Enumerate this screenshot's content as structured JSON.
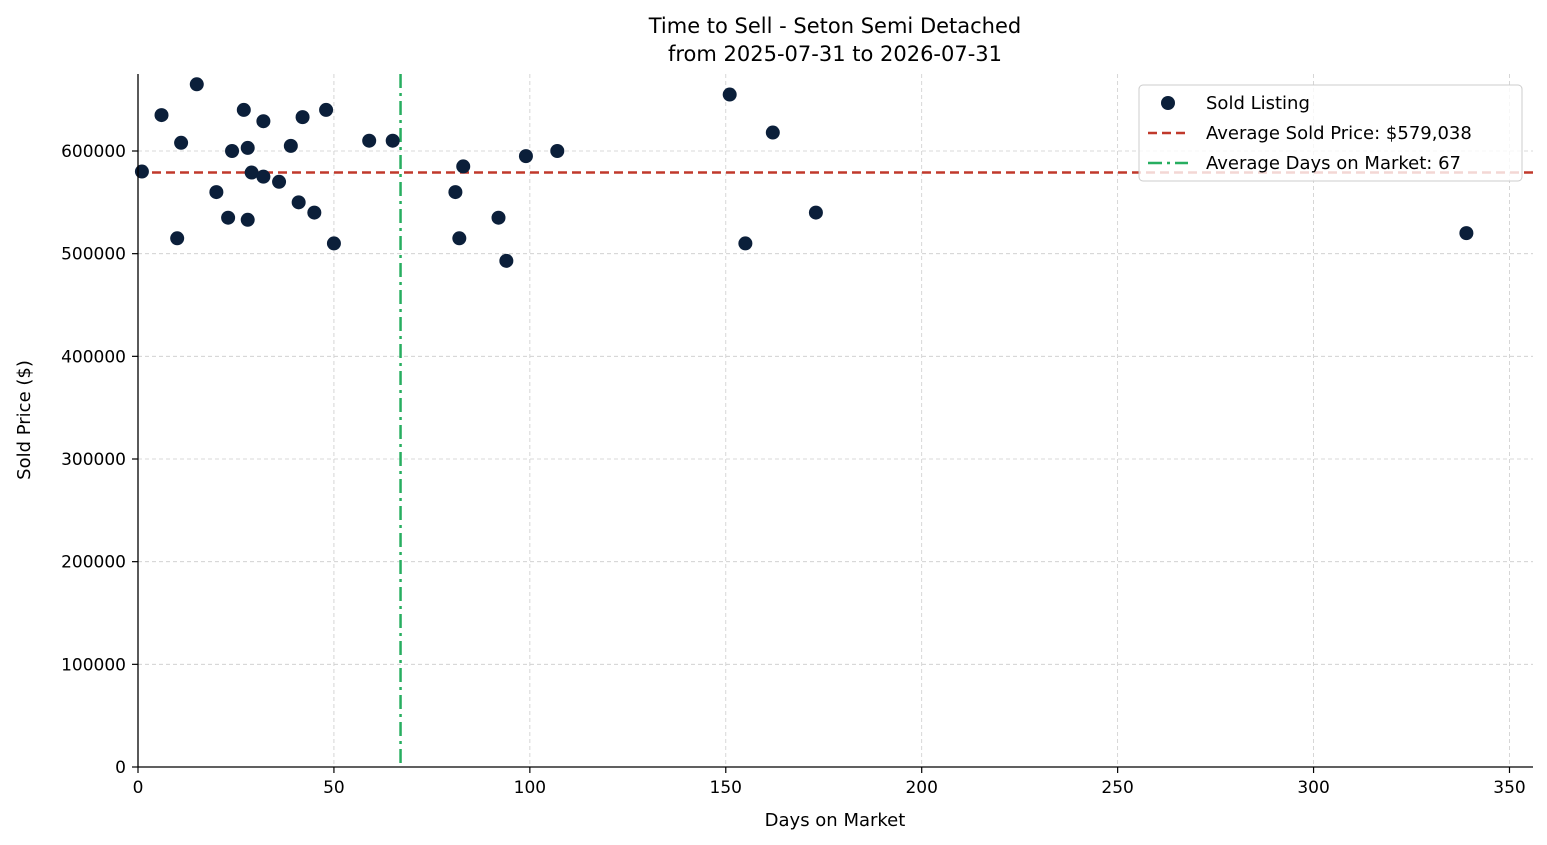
{
  "chart_data": {
    "type": "scatter",
    "title": "Time to Sell - Seton Semi Detached",
    "subtitle": "from 2025-07-31 to 2026-07-31",
    "xlabel": "Days on Market",
    "ylabel": "Sold Price ($)",
    "xlim": [
      0,
      356
    ],
    "ylim": [
      0,
      675000
    ],
    "x_ticks": [
      0,
      50,
      100,
      150,
      200,
      250,
      300,
      350
    ],
    "y_ticks": [
      0,
      100000,
      200000,
      300000,
      400000,
      500000,
      600000
    ],
    "grid": true,
    "legend_position": "top-right",
    "series": [
      {
        "name": "Sold Listing",
        "color": "#0b1f3a",
        "points": [
          {
            "x": 1,
            "y": 580000
          },
          {
            "x": 6,
            "y": 635000
          },
          {
            "x": 10,
            "y": 515000
          },
          {
            "x": 11,
            "y": 608000
          },
          {
            "x": 15,
            "y": 665000
          },
          {
            "x": 20,
            "y": 560000
          },
          {
            "x": 23,
            "y": 535000
          },
          {
            "x": 24,
            "y": 600000
          },
          {
            "x": 27,
            "y": 640000
          },
          {
            "x": 28,
            "y": 603000
          },
          {
            "x": 28,
            "y": 533000
          },
          {
            "x": 29,
            "y": 579000
          },
          {
            "x": 32,
            "y": 629000
          },
          {
            "x": 32,
            "y": 575000
          },
          {
            "x": 36,
            "y": 570000
          },
          {
            "x": 39,
            "y": 605000
          },
          {
            "x": 41,
            "y": 550000
          },
          {
            "x": 42,
            "y": 633000
          },
          {
            "x": 45,
            "y": 540000
          },
          {
            "x": 48,
            "y": 640000
          },
          {
            "x": 50,
            "y": 510000
          },
          {
            "x": 59,
            "y": 610000
          },
          {
            "x": 65,
            "y": 610000
          },
          {
            "x": 81,
            "y": 560000
          },
          {
            "x": 82,
            "y": 515000
          },
          {
            "x": 83,
            "y": 585000
          },
          {
            "x": 92,
            "y": 535000
          },
          {
            "x": 94,
            "y": 493000
          },
          {
            "x": 99,
            "y": 595000
          },
          {
            "x": 107,
            "y": 600000
          },
          {
            "x": 151,
            "y": 655000
          },
          {
            "x": 155,
            "y": 510000
          },
          {
            "x": 162,
            "y": 618000
          },
          {
            "x": 173,
            "y": 540000
          },
          {
            "x": 339,
            "y": 520000
          }
        ]
      }
    ],
    "reference_lines": [
      {
        "name": "Average Sold Price: $579,038",
        "orientation": "horizontal",
        "value": 579038,
        "color": "#c0392b",
        "style": "dashed"
      },
      {
        "name": "Average Days on Market: 67",
        "orientation": "vertical",
        "value": 67,
        "color": "#27ae60",
        "style": "dashdot"
      }
    ],
    "colors": {
      "axis": "#000000",
      "grid": "#cccccc"
    }
  }
}
